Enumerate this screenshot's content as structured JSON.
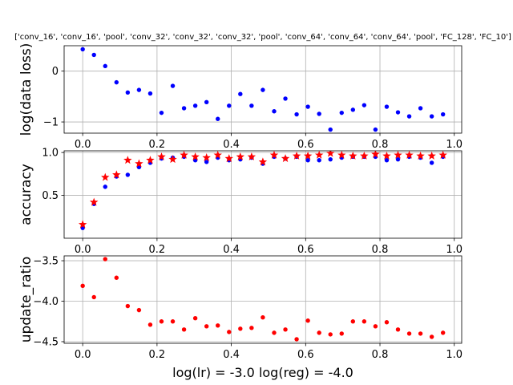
{
  "chart_data": [
    {
      "type": "scatter",
      "title": "['conv_16', 'conv_16', 'pool', 'conv_32', 'conv_32', 'conv_32', 'pool', 'conv_64', 'conv_64', 'conv_64', 'pool', 'FC_128', 'FC_10']",
      "ylabel": "log(data loss)",
      "xlabel": "",
      "xlim": [
        -0.05,
        1.02
      ],
      "ylim": [
        -1.22,
        0.5
      ],
      "xticks": [
        "0.0",
        "0.2",
        "0.4",
        "0.6",
        "0.8",
        "1.0"
      ],
      "yticks": [
        "0",
        "−1"
      ],
      "ytick_values": [
        0,
        -1
      ],
      "grid": true,
      "series": [
        {
          "color": "#0000ff",
          "marker": "dot",
          "x": [
            0.0,
            0.0303,
            0.0606,
            0.0909,
            0.1212,
            0.1515,
            0.1818,
            0.2121,
            0.2424,
            0.2727,
            0.303,
            0.3333,
            0.3636,
            0.3939,
            0.4242,
            0.4545,
            0.4848,
            0.5152,
            0.5455,
            0.5758,
            0.6061,
            0.6364,
            0.6667,
            0.697,
            0.7273,
            0.7576,
            0.7879,
            0.8182,
            0.8485,
            0.8788,
            0.9091,
            0.9394,
            0.9697
          ],
          "y": [
            0.43,
            0.32,
            0.1,
            -0.22,
            -0.42,
            -0.37,
            -0.44,
            -0.82,
            -0.29,
            -0.73,
            -0.68,
            -0.61,
            -0.94,
            -0.68,
            -0.45,
            -0.68,
            -0.37,
            -0.79,
            -0.54,
            -0.85,
            -0.7,
            -0.84,
            -1.15,
            -0.82,
            -0.76,
            -0.67,
            -1.15,
            -0.7,
            -0.81,
            -0.89,
            -0.73,
            -0.89,
            -0.85
          ]
        }
      ]
    },
    {
      "type": "scatter",
      "title": "",
      "ylabel": "accuracy",
      "xlabel": "",
      "xlim": [
        -0.05,
        1.02
      ],
      "ylim": [
        0.0,
        1.02
      ],
      "xticks": [
        "0.0",
        "0.2",
        "0.4",
        "0.6",
        "0.8",
        "1.0"
      ],
      "yticks": [
        "0.5",
        "1.0"
      ],
      "ytick_values": [
        0.5,
        1.0
      ],
      "grid": true,
      "series": [
        {
          "color": "#0000ff",
          "marker": "dot",
          "x": [
            0.0,
            0.0303,
            0.0606,
            0.0909,
            0.1212,
            0.1515,
            0.1818,
            0.2121,
            0.2424,
            0.2727,
            0.303,
            0.3333,
            0.3636,
            0.3939,
            0.4242,
            0.4545,
            0.4848,
            0.5152,
            0.5455,
            0.5758,
            0.6061,
            0.6364,
            0.6667,
            0.697,
            0.7273,
            0.7576,
            0.7879,
            0.8182,
            0.8485,
            0.8788,
            0.9091,
            0.9394,
            0.9697
          ],
          "y": [
            0.12,
            0.4,
            0.6,
            0.72,
            0.74,
            0.83,
            0.88,
            0.93,
            0.94,
            0.95,
            0.91,
            0.89,
            0.94,
            0.91,
            0.92,
            0.94,
            0.87,
            0.95,
            0.93,
            0.95,
            0.91,
            0.91,
            0.92,
            0.94,
            0.95,
            0.95,
            0.95,
            0.91,
            0.92,
            0.95,
            0.94,
            0.88,
            0.95
          ]
        },
        {
          "color": "#ff0000",
          "marker": "star",
          "x": [
            0.0,
            0.0303,
            0.0606,
            0.0909,
            0.1212,
            0.1515,
            0.1818,
            0.2121,
            0.2424,
            0.2727,
            0.303,
            0.3333,
            0.3636,
            0.3939,
            0.4242,
            0.4545,
            0.4848,
            0.5152,
            0.5455,
            0.5758,
            0.6061,
            0.6364,
            0.6667,
            0.697,
            0.7273,
            0.7576,
            0.7879,
            0.8182,
            0.8485,
            0.8788,
            0.9091,
            0.9394,
            0.9697
          ],
          "y": [
            0.16,
            0.42,
            0.71,
            0.74,
            0.91,
            0.87,
            0.91,
            0.95,
            0.92,
            0.97,
            0.95,
            0.94,
            0.97,
            0.93,
            0.95,
            0.95,
            0.89,
            0.97,
            0.93,
            0.96,
            0.96,
            0.97,
            0.99,
            0.97,
            0.96,
            0.96,
            0.98,
            0.96,
            0.97,
            0.97,
            0.96,
            0.96,
            0.97
          ]
        }
      ]
    },
    {
      "type": "scatter",
      "title": "",
      "ylabel": "update_ratio",
      "xlabel": "log(lr) = -3.0   log(reg) = -4.0",
      "xlim": [
        -0.05,
        1.02
      ],
      "ylim": [
        -4.52,
        -3.44
      ],
      "xticks": [
        "0.0",
        "0.2",
        "0.4",
        "0.6",
        "0.8",
        "1.0"
      ],
      "yticks": [
        "−3.5",
        "−4.0",
        "−4.5"
      ],
      "ytick_values": [
        -3.5,
        -4.0,
        -4.5
      ],
      "grid": true,
      "series": [
        {
          "color": "#ff0000",
          "marker": "dot",
          "x": [
            0.0,
            0.0303,
            0.0606,
            0.0909,
            0.1212,
            0.1515,
            0.1818,
            0.2121,
            0.2424,
            0.2727,
            0.303,
            0.3333,
            0.3636,
            0.3939,
            0.4242,
            0.4545,
            0.4848,
            0.5152,
            0.5455,
            0.5758,
            0.6061,
            0.6364,
            0.6667,
            0.697,
            0.7273,
            0.7576,
            0.7879,
            0.8182,
            0.8485,
            0.8788,
            0.9091,
            0.9394,
            0.9697
          ],
          "y": [
            -3.81,
            -3.95,
            -3.48,
            -3.71,
            -4.06,
            -4.11,
            -4.29,
            -4.25,
            -4.25,
            -4.35,
            -4.21,
            -4.31,
            -4.3,
            -4.38,
            -4.34,
            -4.33,
            -4.2,
            -4.39,
            -4.35,
            -4.47,
            -4.24,
            -4.39,
            -4.41,
            -4.4,
            -4.25,
            -4.25,
            -4.31,
            -4.26,
            -4.35,
            -4.4,
            -4.4,
            -4.44,
            -4.39
          ]
        }
      ]
    }
  ]
}
